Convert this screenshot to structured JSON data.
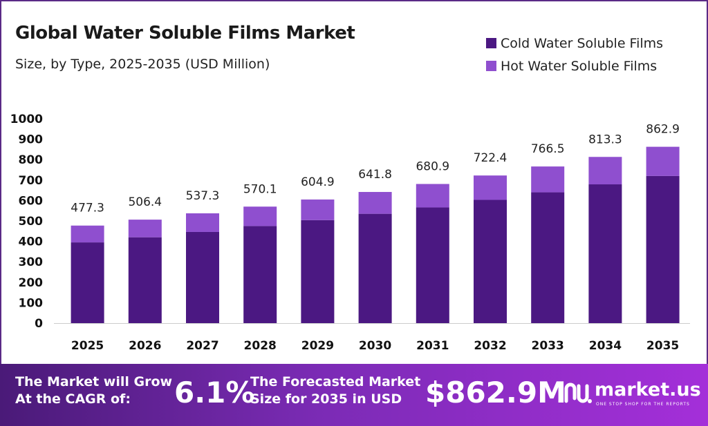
{
  "header": {
    "title": "Global Water Soluble Films Market",
    "subtitle": "Size, by Type, 2025-2035 (USD Million)"
  },
  "legend": [
    {
      "label": "Cold Water Soluble Films",
      "color": "#4b1882"
    },
    {
      "label": "Hot Water Soluble Films",
      "color": "#8f4fcf"
    }
  ],
  "chart_data": {
    "type": "bar",
    "stacked": true,
    "categories": [
      "2025",
      "2026",
      "2027",
      "2028",
      "2029",
      "2030",
      "2031",
      "2032",
      "2033",
      "2034",
      "2035"
    ],
    "series": [
      {
        "name": "Cold Water Soluble Films",
        "color": "#4b1882",
        "values": [
          395,
          420,
          446,
          475,
          504,
          535,
          566,
          603,
          640,
          679,
          720
        ]
      },
      {
        "name": "Hot Water Soluble Films",
        "color": "#8f4fcf",
        "values": [
          82.3,
          86.4,
          91.3,
          95.1,
          100.9,
          106.8,
          114.9,
          119.4,
          126.5,
          134.3,
          142.9
        ]
      }
    ],
    "totals": [
      "477.3",
      "506.4",
      "537.3",
      "570.1",
      "604.9",
      "641.8",
      "680.9",
      "722.4",
      "766.5",
      "813.3",
      "862.9"
    ],
    "yticks": [
      0,
      100,
      200,
      300,
      400,
      500,
      600,
      700,
      800,
      900,
      1000
    ],
    "ylim": [
      0,
      1000
    ],
    "grid": false,
    "legend_position": "top-right"
  },
  "banner": {
    "cagr_text_1": "The Market will Grow",
    "cagr_text_2": "At the CAGR of:",
    "cagr_value": "6.1%",
    "forecast_text_1": "The Forecasted Market",
    "forecast_text_2": "Size for 2035 in USD",
    "forecast_value": "$862.9M",
    "logo_name": "market.us",
    "logo_tagline": "ONE STOP SHOP FOR THE REPORTS"
  }
}
